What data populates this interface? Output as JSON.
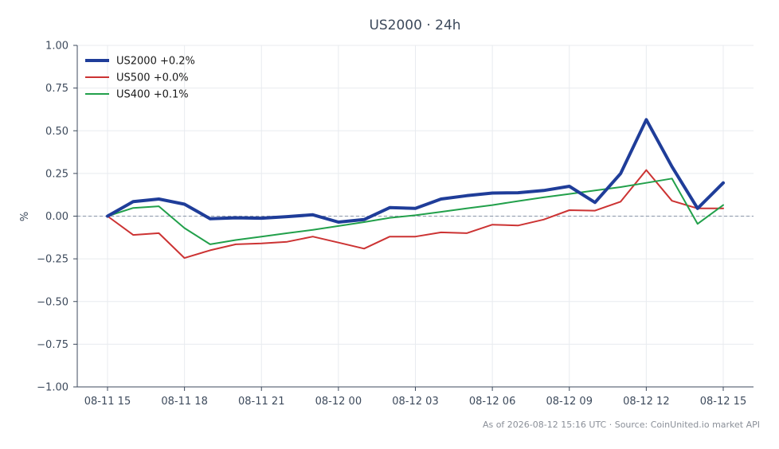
{
  "chart_data": {
    "type": "line",
    "title": "US2000 · 24h",
    "xlabel": "",
    "ylabel": "%",
    "ylim": [
      -1.0,
      1.0
    ],
    "yticks": [
      1.0,
      0.75,
      0.5,
      0.25,
      0.0,
      -0.25,
      -0.5,
      -0.75,
      -1.0
    ],
    "ytick_labels": [
      "1.00",
      "0.75",
      "0.50",
      "0.25",
      "0.00",
      "−0.25",
      "−0.50",
      "−0.75",
      "−1.00"
    ],
    "x": [
      "08-11 15:00",
      "08-11 16:00",
      "08-11 17:00",
      "08-11 18:00",
      "08-11 19:00",
      "08-11 20:00",
      "08-11 21:00",
      "08-11 22:00",
      "08-11 23:00",
      "08-12 00:00",
      "08-12 01:00",
      "08-12 02:00",
      "08-12 03:00",
      "08-12 04:00",
      "08-12 05:00",
      "08-12 06:00",
      "08-12 07:00",
      "08-12 08:00",
      "08-12 09:00",
      "08-12 10:00",
      "08-12 11:00",
      "08-12 12:00",
      "08-12 13:00",
      "08-12 14:00",
      "08-12 15:00"
    ],
    "xtick_positions": [
      0,
      3,
      6,
      9,
      12,
      15,
      18,
      21,
      24
    ],
    "xtick_labels": [
      "08-11 15",
      "08-11 18",
      "08-11 21",
      "08-12 00",
      "08-12 03",
      "08-12 06",
      "08-12 09",
      "08-12 12",
      "08-12 15"
    ],
    "grid": true,
    "legend_position": "top-left",
    "reference_line": 0,
    "series": [
      {
        "name": "US2000 +0.2%",
        "color": "#1f3d99",
        "width": 4,
        "values": [
          0.0,
          0.085,
          0.1,
          0.07,
          -0.015,
          -0.01,
          -0.012,
          -0.003,
          0.008,
          -0.035,
          -0.02,
          0.05,
          0.045,
          0.1,
          0.12,
          0.135,
          0.137,
          0.15,
          0.175,
          0.08,
          0.25,
          0.565,
          0.29,
          0.045,
          0.195
        ]
      },
      {
        "name": "US500 +0.0%",
        "color": "#cc3333",
        "width": 2,
        "values": [
          0.0,
          -0.11,
          -0.1,
          -0.245,
          -0.2,
          -0.165,
          -0.16,
          -0.15,
          -0.12,
          -0.155,
          -0.19,
          -0.12,
          -0.12,
          -0.095,
          -0.1,
          -0.05,
          -0.055,
          -0.02,
          0.035,
          0.032,
          0.085,
          0.27,
          0.09,
          0.045,
          0.045
        ]
      },
      {
        "name": "US400 +0.1%",
        "color": "#22a04b",
        "width": 2,
        "values": [
          0.0,
          0.048,
          0.058,
          -0.07,
          -0.165,
          -0.14,
          -0.12,
          -0.1,
          -0.08,
          -0.058,
          -0.035,
          -0.01,
          0.005,
          0.025,
          0.045,
          0.065,
          0.088,
          0.11,
          0.13,
          0.15,
          0.17,
          0.195,
          0.22,
          -0.045,
          0.065
        ]
      }
    ],
    "footer": "As of 2026-08-12 15:16 UTC · Source: CoinUnited.io market API"
  }
}
